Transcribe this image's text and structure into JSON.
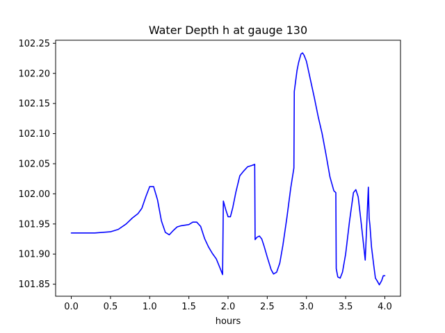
{
  "chart_data": {
    "type": "line",
    "title": "Water Depth h at gauge 130",
    "xlabel": "hours",
    "ylabel": "",
    "xlim": [
      -0.2,
      4.2
    ],
    "ylim": [
      101.83,
      102.255
    ],
    "xticks": [
      0.0,
      0.5,
      1.0,
      1.5,
      2.0,
      2.5,
      3.0,
      3.5,
      4.0
    ],
    "xtick_labels": [
      "0.0",
      "0.5",
      "1.0",
      "1.5",
      "2.0",
      "2.5",
      "3.0",
      "3.5",
      "4.0"
    ],
    "yticks": [
      101.85,
      101.9,
      101.95,
      102.0,
      102.05,
      102.1,
      102.15,
      102.2,
      102.25
    ],
    "ytick_labels": [
      "101.85",
      "101.90",
      "101.95",
      "102.00",
      "102.05",
      "102.10",
      "102.15",
      "102.20",
      "102.25"
    ],
    "grid": false,
    "series": [
      {
        "name": "",
        "color": "#0000ff",
        "x": [
          0.0,
          0.3,
          0.5,
          0.6,
          0.7,
          0.78,
          0.85,
          0.9,
          0.95,
          1.0,
          1.05,
          1.1,
          1.15,
          1.2,
          1.25,
          1.3,
          1.35,
          1.4,
          1.45,
          1.5,
          1.55,
          1.6,
          1.65,
          1.7,
          1.75,
          1.8,
          1.85,
          1.9,
          1.93,
          1.94,
          1.97,
          2.0,
          2.03,
          2.06,
          2.1,
          2.15,
          2.2,
          2.25,
          2.3,
          2.34,
          2.345,
          2.37,
          2.4,
          2.43,
          2.46,
          2.5,
          2.55,
          2.58,
          2.62,
          2.66,
          2.7,
          2.75,
          2.8,
          2.84,
          2.845,
          2.86,
          2.88,
          2.9,
          2.93,
          2.95,
          2.97,
          3.0,
          3.05,
          3.1,
          3.15,
          3.2,
          3.25,
          3.3,
          3.35,
          3.375,
          3.38,
          3.4,
          3.43,
          3.46,
          3.5,
          3.55,
          3.6,
          3.63,
          3.66,
          3.7,
          3.75,
          3.79,
          3.8,
          3.81,
          3.83,
          3.86,
          3.88,
          3.9,
          3.93,
          3.96,
          3.98,
          4.0
        ],
        "y": [
          101.935,
          101.935,
          101.937,
          101.941,
          101.95,
          101.96,
          101.967,
          101.976,
          101.995,
          102.012,
          102.012,
          101.99,
          101.955,
          101.936,
          101.932,
          101.939,
          101.945,
          101.947,
          101.948,
          101.949,
          101.953,
          101.953,
          101.946,
          101.926,
          101.912,
          101.901,
          101.892,
          101.876,
          101.866,
          101.988,
          101.974,
          101.962,
          101.962,
          101.977,
          102.003,
          102.03,
          102.038,
          102.045,
          102.047,
          102.049,
          101.924,
          101.928,
          101.93,
          101.925,
          101.913,
          101.895,
          101.874,
          101.867,
          101.87,
          101.885,
          101.915,
          101.96,
          102.01,
          102.043,
          102.17,
          102.185,
          102.205,
          102.218,
          102.232,
          102.234,
          102.23,
          102.22,
          102.19,
          102.16,
          102.128,
          102.1,
          102.065,
          102.028,
          102.005,
          102.002,
          101.876,
          101.862,
          101.86,
          101.87,
          101.9,
          101.955,
          102.002,
          102.007,
          101.995,
          101.95,
          101.89,
          102.011,
          101.96,
          101.948,
          101.912,
          101.88,
          101.86,
          101.856,
          101.849,
          101.856,
          101.864,
          101.864
        ]
      }
    ]
  }
}
